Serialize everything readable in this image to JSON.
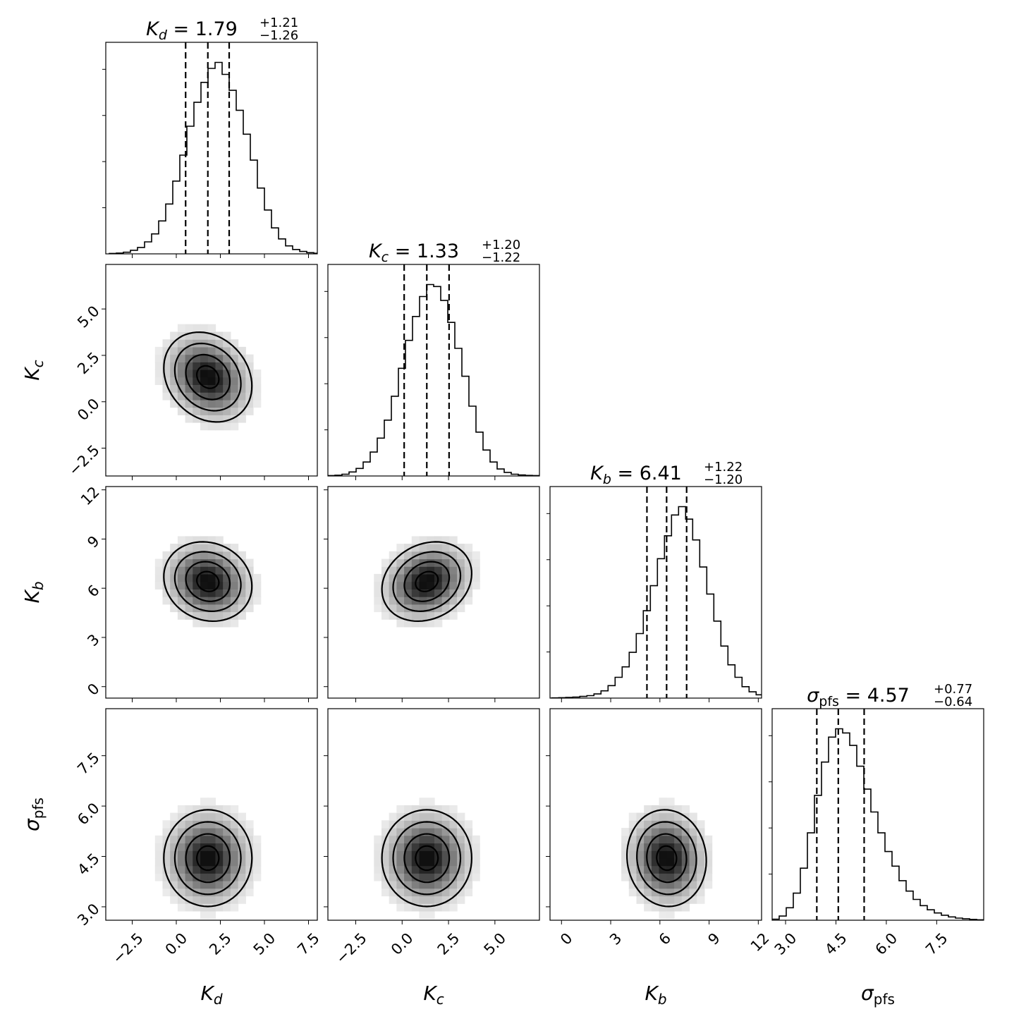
{
  "chart_data": {
    "type": "corner",
    "parameters": [
      {
        "id": "Kd",
        "sym": "K",
        "sub": "d",
        "italic_sub": true,
        "median": 1.79,
        "plus": 1.21,
        "minus": 1.26,
        "title": {
          "value": "1.79",
          "plus": "+1.21",
          "minus": "−1.26"
        },
        "range": [
          -4.0,
          8.0
        ],
        "ticks": [
          -2.5,
          0.0,
          2.5,
          5.0,
          7.5
        ],
        "tick_labels": [
          "−2.5",
          "0.0",
          "2.5",
          "5.0",
          "7.5"
        ]
      },
      {
        "id": "Kc",
        "sym": "K",
        "sub": "c",
        "italic_sub": true,
        "median": 1.33,
        "plus": 1.2,
        "minus": 1.22,
        "title": {
          "value": "1.33",
          "plus": "+1.20",
          "minus": "−1.22"
        },
        "range": [
          -4.0,
          7.4
        ],
        "ticks": [
          -2.5,
          0.0,
          2.5,
          5.0
        ],
        "tick_labels": [
          "−2.5",
          "0.0",
          "2.5",
          "5.0"
        ]
      },
      {
        "id": "Kb",
        "sym": "K",
        "sub": "b",
        "italic_sub": true,
        "median": 6.41,
        "plus": 1.22,
        "minus": 1.2,
        "title": {
          "value": "6.41",
          "plus": "+1.22",
          "minus": "−1.20"
        },
        "range": [
          -0.7,
          12.2
        ],
        "ticks": [
          0,
          3,
          6,
          9,
          12
        ],
        "tick_labels": [
          "0",
          "3",
          "6",
          "9",
          "12"
        ]
      },
      {
        "id": "spfs",
        "sym": "σ",
        "sub": "pfs",
        "italic_sub": false,
        "median": 4.57,
        "plus": 0.77,
        "minus": 0.64,
        "title": {
          "value": "4.57",
          "plus": "+0.77",
          "minus": "−0.64"
        },
        "range": [
          2.6,
          8.9
        ],
        "ticks": [
          3.0,
          4.5,
          6.0,
          7.5
        ],
        "tick_labels": [
          "3.0",
          "4.5",
          "6.0",
          "7.5"
        ]
      }
    ],
    "histograms": [
      {
        "param": "Kd",
        "x_start": -3.8,
        "bin_width": 0.4,
        "counts": [
          0.002,
          0.004,
          0.008,
          0.018,
          0.032,
          0.06,
          0.1,
          0.165,
          0.25,
          0.365,
          0.495,
          0.64,
          0.76,
          0.86,
          0.93,
          0.96,
          0.9,
          0.82,
          0.72,
          0.6,
          0.47,
          0.33,
          0.22,
          0.13,
          0.075,
          0.04,
          0.022,
          0.012,
          0.006,
          0.003
        ]
      },
      {
        "param": "Kc",
        "x_start": -4.0,
        "bin_width": 0.38,
        "counts": [
          0.002,
          0.004,
          0.009,
          0.02,
          0.038,
          0.07,
          0.12,
          0.19,
          0.28,
          0.4,
          0.54,
          0.68,
          0.8,
          0.9,
          0.96,
          0.95,
          0.88,
          0.77,
          0.64,
          0.5,
          0.35,
          0.22,
          0.13,
          0.07,
          0.035,
          0.018,
          0.009,
          0.005,
          0.003,
          0.002
        ]
      },
      {
        "param": "Kb",
        "x_start": -0.6,
        "bin_width": 0.43,
        "counts": [
          0.001,
          0.002,
          0.003,
          0.005,
          0.008,
          0.012,
          0.02,
          0.035,
          0.06,
          0.1,
          0.15,
          0.22,
          0.31,
          0.42,
          0.54,
          0.67,
          0.78,
          0.88,
          0.92,
          0.86,
          0.76,
          0.63,
          0.5,
          0.37,
          0.25,
          0.16,
          0.1,
          0.055,
          0.03,
          0.016
        ]
      },
      {
        "param": "spfs",
        "x_start": 2.6,
        "bin_width": 0.21,
        "counts": [
          0.005,
          0.02,
          0.06,
          0.13,
          0.25,
          0.42,
          0.6,
          0.76,
          0.88,
          0.92,
          0.9,
          0.84,
          0.74,
          0.63,
          0.52,
          0.42,
          0.33,
          0.26,
          0.19,
          0.14,
          0.1,
          0.07,
          0.05,
          0.035,
          0.024,
          0.016,
          0.01,
          0.007,
          0.004,
          0.002
        ]
      }
    ],
    "pairs": [
      {
        "x": "Kd",
        "y": "Kc",
        "cx": 1.79,
        "cy": 1.33,
        "sx": 1.25,
        "sy": 1.21,
        "rho": -0.2
      },
      {
        "x": "Kd",
        "y": "Kb",
        "cx": 1.79,
        "cy": 6.41,
        "sx": 1.25,
        "sy": 1.21,
        "rho": -0.12
      },
      {
        "x": "Kc",
        "y": "Kb",
        "cx": 1.33,
        "cy": 6.41,
        "sx": 1.21,
        "sy": 1.21,
        "rho": 0.2
      },
      {
        "x": "Kd",
        "y": "spfs",
        "cx": 1.79,
        "cy": 4.45,
        "sx": 1.25,
        "sy": 0.72,
        "rho": 0.0
      },
      {
        "x": "Kc",
        "y": "spfs",
        "cx": 1.33,
        "cy": 4.45,
        "sx": 1.21,
        "sy": 0.72,
        "rho": 0.0
      },
      {
        "x": "Kb",
        "y": "spfs",
        "cx": 6.41,
        "cy": 4.45,
        "sx": 1.21,
        "sy": 0.72,
        "rho": -0.05
      }
    ],
    "quantile_lines": "16th, 50th and 84th percentiles (dashed)",
    "contour_levels_sigma": [
      0.5,
      1.0,
      1.5,
      2.0
    ]
  }
}
